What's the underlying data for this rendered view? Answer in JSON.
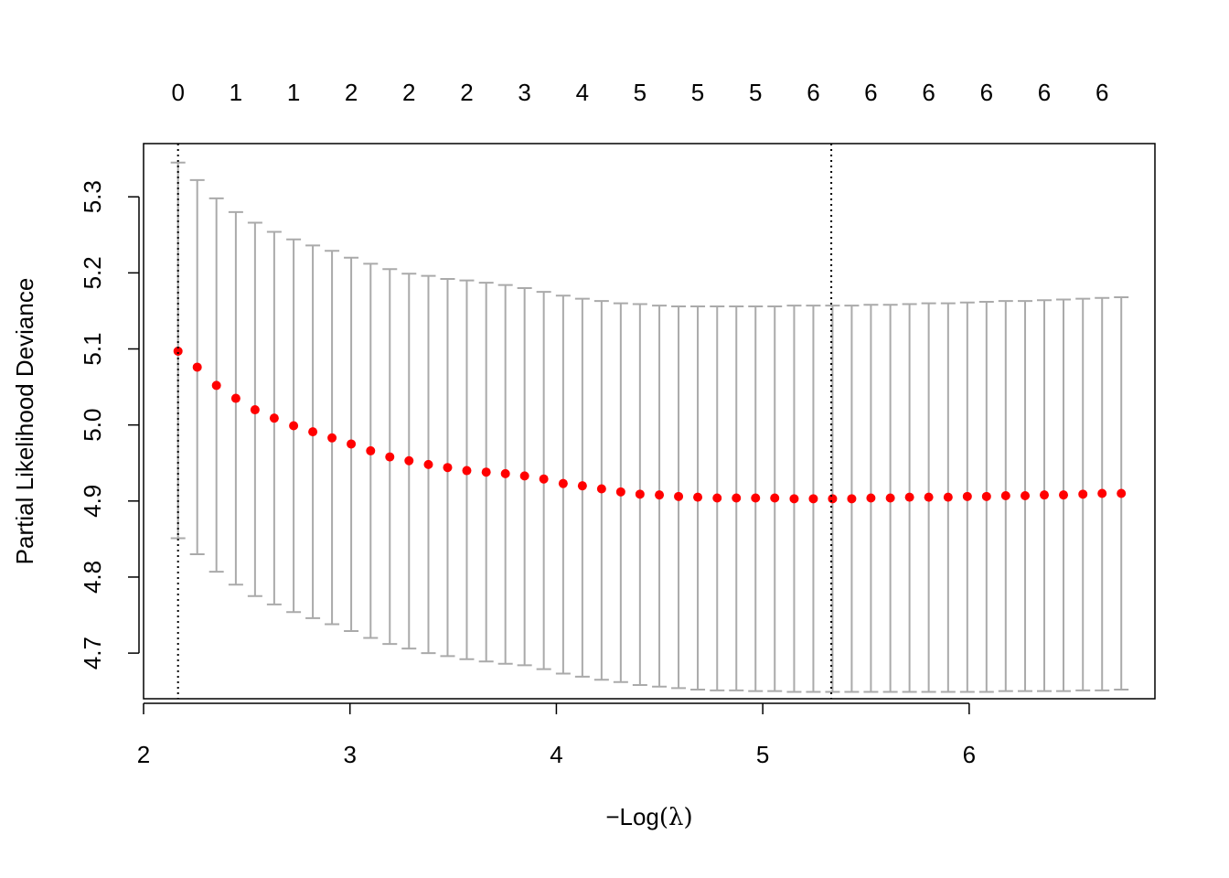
{
  "chart_data": {
    "type": "scatter",
    "xlabel": "-Log(λ)",
    "xlabel_prefix": "−Log",
    "xlabel_symbol": "(λ)",
    "ylabel": "Partial Likelihood Deviance",
    "xlim": [
      2.0,
      6.9
    ],
    "ylim": [
      4.64,
      5.37
    ],
    "x_ticks": [
      2,
      3,
      4,
      5,
      6
    ],
    "y_ticks": [
      4.7,
      4.8,
      4.9,
      5.0,
      5.1,
      5.2,
      5.3
    ],
    "top_axis": {
      "x": [
        2.167,
        2.447,
        2.727,
        3.006,
        3.286,
        3.566,
        3.846,
        4.126,
        4.405,
        4.685,
        4.965,
        5.245,
        5.524,
        5.804,
        6.084,
        6.364,
        6.644
      ],
      "labels": [
        "0",
        "1",
        "1",
        "2",
        "2",
        "2",
        "3",
        "4",
        "5",
        "5",
        "5",
        "6",
        "6",
        "6",
        "6",
        "6",
        "6"
      ]
    },
    "vlines": [
      2.167,
      5.332
    ],
    "point_color": "#ff0000",
    "errorbar_color": "#aaaaaa",
    "series": [
      {
        "x": [
          2.167,
          2.26,
          2.353,
          2.447,
          2.54,
          2.633,
          2.727,
          2.82,
          2.913,
          3.006,
          3.1,
          3.193,
          3.286,
          3.38,
          3.473,
          3.566,
          3.66,
          3.753,
          3.846,
          3.939,
          4.033,
          4.126,
          4.219,
          4.312,
          4.405,
          4.499,
          4.592,
          4.685,
          4.779,
          4.872,
          4.965,
          5.058,
          5.152,
          5.245,
          5.338,
          5.431,
          5.524,
          5.618,
          5.711,
          5.804,
          5.898,
          5.991,
          6.084,
          6.177,
          6.271,
          6.364,
          6.457,
          6.551,
          6.644,
          6.737
        ],
        "y": [
          5.097,
          5.076,
          5.052,
          5.035,
          5.02,
          5.009,
          4.999,
          4.991,
          4.983,
          4.975,
          4.966,
          4.958,
          4.953,
          4.948,
          4.944,
          4.94,
          4.938,
          4.936,
          4.933,
          4.929,
          4.923,
          4.92,
          4.916,
          4.912,
          4.909,
          4.908,
          4.906,
          4.905,
          4.904,
          4.904,
          4.904,
          4.904,
          4.903,
          4.903,
          4.903,
          4.903,
          4.904,
          4.904,
          4.905,
          4.905,
          4.905,
          4.906,
          4.906,
          4.907,
          4.907,
          4.908,
          4.908,
          4.909,
          4.91,
          4.91
        ],
        "upper": [
          5.345,
          5.322,
          5.298,
          5.28,
          5.266,
          5.254,
          5.244,
          5.236,
          5.229,
          5.22,
          5.212,
          5.205,
          5.199,
          5.196,
          5.192,
          5.19,
          5.187,
          5.184,
          5.18,
          5.175,
          5.17,
          5.166,
          5.163,
          5.16,
          5.159,
          5.157,
          5.156,
          5.156,
          5.156,
          5.156,
          5.156,
          5.156,
          5.157,
          5.157,
          5.157,
          5.157,
          5.158,
          5.158,
          5.159,
          5.16,
          5.16,
          5.161,
          5.162,
          5.163,
          5.163,
          5.164,
          5.165,
          5.166,
          5.167,
          5.168
        ],
        "lower": [
          4.851,
          4.83,
          4.807,
          4.79,
          4.775,
          4.764,
          4.754,
          4.746,
          4.738,
          4.729,
          4.72,
          4.712,
          4.706,
          4.7,
          4.696,
          4.692,
          4.689,
          4.686,
          4.684,
          4.679,
          4.673,
          4.669,
          4.665,
          4.662,
          4.658,
          4.656,
          4.654,
          4.652,
          4.651,
          4.651,
          4.65,
          4.65,
          4.649,
          4.649,
          4.649,
          4.649,
          4.649,
          4.649,
          4.649,
          4.649,
          4.649,
          4.649,
          4.649,
          4.65,
          4.65,
          4.65,
          4.65,
          4.651,
          4.651,
          4.652
        ]
      }
    ]
  }
}
